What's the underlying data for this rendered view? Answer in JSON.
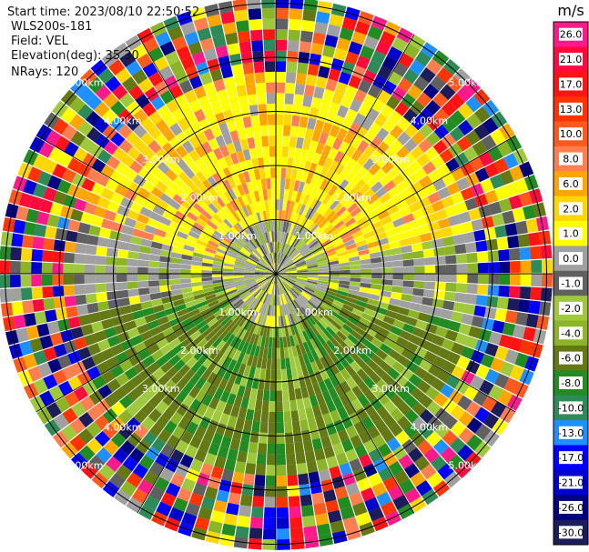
{
  "header": {
    "start_time": "Start time: 2023/08/10 22:50:52",
    "instrument": "WLS200s-181",
    "field": "Field: VEL",
    "elevation": "Elevation(deg): 35.30",
    "nrays": "NRays: 120"
  },
  "chart_data": {
    "type": "heatmap",
    "projection": "polar",
    "field": "VEL",
    "range_rings": [
      {
        "radius_km": 1.0,
        "label": "1.00km"
      },
      {
        "radius_km": 2.0,
        "label": "2.00km"
      },
      {
        "radius_km": 3.0,
        "label": "3.00km"
      },
      {
        "radius_km": 4.0,
        "label": "4.00km"
      },
      {
        "radius_km": 5.0,
        "label": "5.00km"
      }
    ],
    "colorbar": {
      "unit": "m/s",
      "ticks": [
        "26.0",
        "21.0",
        "17.0",
        "13.0",
        "10.0",
        "8.0",
        "6.0",
        "2.0",
        "1.0",
        "0.0",
        "-1.0",
        "-2.0",
        "-4.0",
        "-6.0",
        "-8.0",
        "-10.0",
        "-13.0",
        "-17.0",
        "-21.0",
        "-26.0",
        "-30.0"
      ],
      "colors": [
        "#ff1a8c",
        "#ff0a3c",
        "#ff1414",
        "#ff3300",
        "#ff5a1e",
        "#ff7f50",
        "#ffa500",
        "#ffd700",
        "#ffff00",
        "#a0a0a0",
        "#606060",
        "#a0c83c",
        "#8cb428",
        "#647814",
        "#228b22",
        "#2e8b57",
        "#1e90ff",
        "#0000ff",
        "#0000cd",
        "#000080",
        "#1c1c5a"
      ]
    },
    "nrays": 120
  }
}
